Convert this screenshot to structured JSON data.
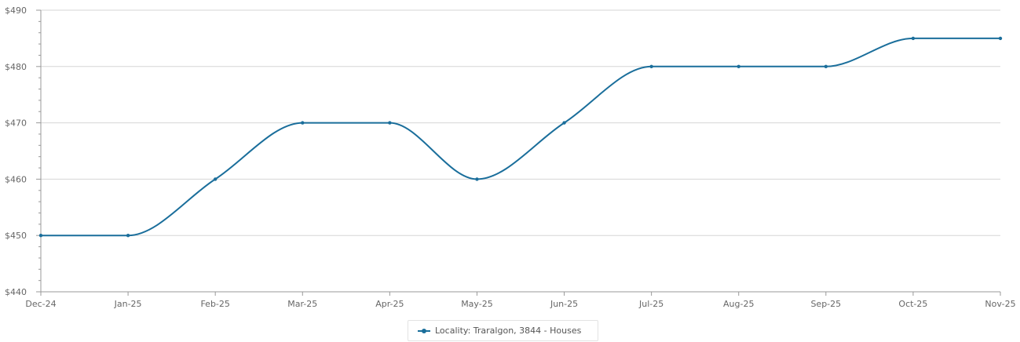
{
  "chart_data": {
    "type": "line",
    "categories": [
      "Dec-24",
      "Jan-25",
      "Feb-25",
      "Mar-25",
      "Apr-25",
      "May-25",
      "Jun-25",
      "Jul-25",
      "Aug-25",
      "Sep-25",
      "Oct-25",
      "Nov-25"
    ],
    "series": [
      {
        "name": "Locality: Traralgon, 3844 - Houses",
        "values": [
          450,
          450,
          460,
          470,
          470,
          460,
          470,
          480,
          480,
          480,
          485,
          485
        ]
      }
    ],
    "ylim": [
      440,
      490
    ],
    "yticks": [
      440,
      450,
      460,
      470,
      480,
      490
    ],
    "ytick_labels": [
      "$440",
      "$450",
      "$460",
      "$470",
      "$480",
      "$490"
    ],
    "title": "",
    "xlabel": "",
    "ylabel": "",
    "grid": true,
    "legend_position": "bottom-center",
    "line_color": "#1a6e9b",
    "grid_color": "#d6d6d6"
  }
}
